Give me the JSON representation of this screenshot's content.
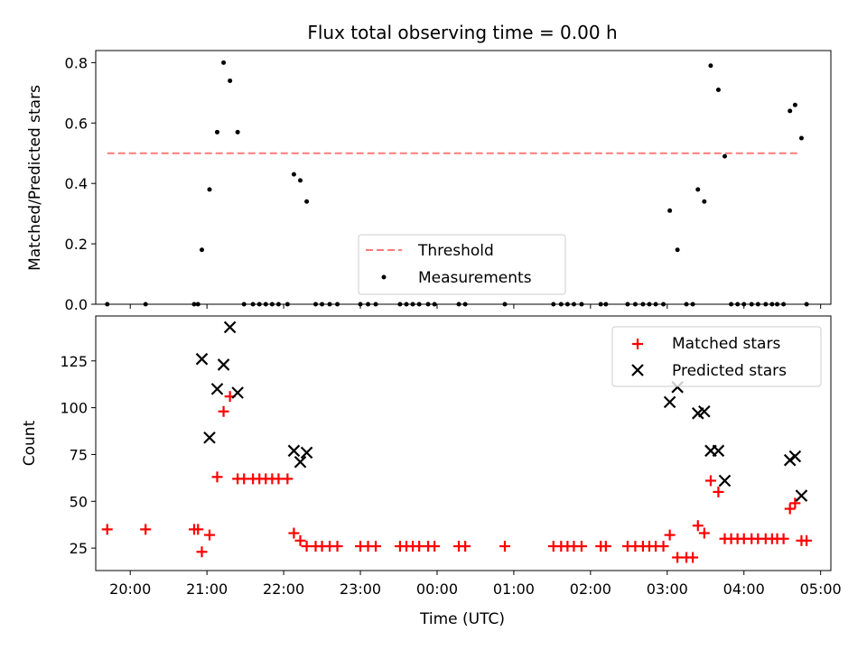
{
  "figure": {
    "title": "Flux total observing time = 0.00 h"
  },
  "chart_data": [
    {
      "type": "scatter",
      "title": "Flux total observing time = 0.00 h",
      "xlabel": "",
      "ylabel": "Matched/Predicted stars",
      "xlim": [
        "19:33",
        "05:08"
      ],
      "ylim": [
        0,
        0.84
      ],
      "yticks": [
        "0.0",
        "0.2",
        "0.4",
        "0.6",
        "0.8"
      ],
      "ytick_values": [
        0,
        0.2,
        0.4,
        0.6,
        0.8
      ],
      "xticks": [
        "20:00",
        "21:00",
        "22:00",
        "23:00",
        "00:00",
        "01:00",
        "02:00",
        "03:00",
        "04:00",
        "05:00"
      ],
      "legend_position": "lower-center",
      "threshold": {
        "name": "Threshold",
        "value": 0.5,
        "x_start": "19:42",
        "x_end": "04:43",
        "color": "#ff7a7a"
      },
      "series": [
        {
          "name": "Measurements",
          "marker": "dot",
          "color": "#000000",
          "points": [
            [
              "19:42",
              0
            ],
            [
              "20:12",
              0
            ],
            [
              "20:50",
              0
            ],
            [
              "20:53",
              0
            ],
            [
              "20:56",
              0.18
            ],
            [
              "21:02",
              0.38
            ],
            [
              "21:08",
              0.57
            ],
            [
              "21:13",
              0.8
            ],
            [
              "21:18",
              0.74
            ],
            [
              "21:24",
              0.57
            ],
            [
              "21:29",
              0
            ],
            [
              "21:36",
              0
            ],
            [
              "21:41",
              0
            ],
            [
              "21:46",
              0
            ],
            [
              "21:51",
              0
            ],
            [
              "21:56",
              0
            ],
            [
              "22:03",
              0
            ],
            [
              "22:08",
              0.43
            ],
            [
              "22:13",
              0.41
            ],
            [
              "22:18",
              0.34
            ],
            [
              "22:25",
              0
            ],
            [
              "22:30",
              0
            ],
            [
              "22:36",
              0
            ],
            [
              "22:42",
              0
            ],
            [
              "23:00",
              0
            ],
            [
              "23:06",
              0
            ],
            [
              "23:12",
              0
            ],
            [
              "23:31",
              0
            ],
            [
              "23:36",
              0
            ],
            [
              "23:41",
              0
            ],
            [
              "23:46",
              0
            ],
            [
              "23:53",
              0
            ],
            [
              "23:58",
              0
            ],
            [
              "00:17",
              0
            ],
            [
              "00:22",
              0
            ],
            [
              "00:53",
              0
            ],
            [
              "01:31",
              0
            ],
            [
              "01:37",
              0
            ],
            [
              "01:42",
              0
            ],
            [
              "01:47",
              0
            ],
            [
              "01:53",
              0
            ],
            [
              "02:08",
              0
            ],
            [
              "02:12",
              0
            ],
            [
              "02:29",
              0
            ],
            [
              "02:35",
              0
            ],
            [
              "02:41",
              0
            ],
            [
              "02:46",
              0
            ],
            [
              "02:51",
              0
            ],
            [
              "02:57",
              0
            ],
            [
              "03:02",
              0.31
            ],
            [
              "03:08",
              0.18
            ],
            [
              "03:15",
              0
            ],
            [
              "03:20",
              0
            ],
            [
              "03:24",
              0.38
            ],
            [
              "03:29",
              0.34
            ],
            [
              "03:34",
              0.79
            ],
            [
              "03:40",
              0.71
            ],
            [
              "03:45",
              0.49
            ],
            [
              "03:50",
              0
            ],
            [
              "03:55",
              0
            ],
            [
              "04:00",
              0
            ],
            [
              "04:06",
              0
            ],
            [
              "04:11",
              0
            ],
            [
              "04:17",
              0
            ],
            [
              "04:22",
              0
            ],
            [
              "04:26",
              0
            ],
            [
              "04:31",
              0
            ],
            [
              "04:36",
              0.64
            ],
            [
              "04:40",
              0.66
            ],
            [
              "04:45",
              0.55
            ],
            [
              "04:49",
              0
            ]
          ]
        }
      ]
    },
    {
      "type": "scatter",
      "title": "",
      "xlabel": "Time (UTC)",
      "ylabel": "Count",
      "xlim": [
        "19:33",
        "05:08"
      ],
      "ylim": [
        13,
        149
      ],
      "yticks": [
        "25",
        "50",
        "75",
        "100",
        "125"
      ],
      "ytick_values": [
        25,
        50,
        75,
        100,
        125
      ],
      "xticks": [
        "20:00",
        "21:00",
        "22:00",
        "23:00",
        "00:00",
        "01:00",
        "02:00",
        "03:00",
        "04:00",
        "05:00"
      ],
      "legend_position": "top-right",
      "series": [
        {
          "name": "Matched stars",
          "marker": "plus",
          "color": "#ff0000",
          "points": [
            [
              "19:42",
              35
            ],
            [
              "20:12",
              35
            ],
            [
              "20:50",
              35
            ],
            [
              "20:53",
              35
            ],
            [
              "20:56",
              23
            ],
            [
              "21:02",
              32
            ],
            [
              "21:08",
              63
            ],
            [
              "21:13",
              98
            ],
            [
              "21:18",
              106
            ],
            [
              "21:24",
              62
            ],
            [
              "21:29",
              62
            ],
            [
              "21:36",
              62
            ],
            [
              "21:41",
              62
            ],
            [
              "21:46",
              62
            ],
            [
              "21:51",
              62
            ],
            [
              "21:56",
              62
            ],
            [
              "22:03",
              62
            ],
            [
              "22:08",
              33
            ],
            [
              "22:13",
              29
            ],
            [
              "22:18",
              26
            ],
            [
              "22:25",
              26
            ],
            [
              "22:30",
              26
            ],
            [
              "22:36",
              26
            ],
            [
              "22:42",
              26
            ],
            [
              "23:00",
              26
            ],
            [
              "23:06",
              26
            ],
            [
              "23:12",
              26
            ],
            [
              "23:31",
              26
            ],
            [
              "23:36",
              26
            ],
            [
              "23:41",
              26
            ],
            [
              "23:46",
              26
            ],
            [
              "23:53",
              26
            ],
            [
              "23:58",
              26
            ],
            [
              "00:17",
              26
            ],
            [
              "00:22",
              26
            ],
            [
              "00:53",
              26
            ],
            [
              "01:31",
              26
            ],
            [
              "01:37",
              26
            ],
            [
              "01:42",
              26
            ],
            [
              "01:47",
              26
            ],
            [
              "01:53",
              26
            ],
            [
              "02:08",
              26
            ],
            [
              "02:12",
              26
            ],
            [
              "02:29",
              26
            ],
            [
              "02:35",
              26
            ],
            [
              "02:41",
              26
            ],
            [
              "02:46",
              26
            ],
            [
              "02:51",
              26
            ],
            [
              "02:57",
              26
            ],
            [
              "03:02",
              32
            ],
            [
              "03:08",
              20
            ],
            [
              "03:15",
              20
            ],
            [
              "03:20",
              20
            ],
            [
              "03:24",
              37
            ],
            [
              "03:29",
              33
            ],
            [
              "03:34",
              61
            ],
            [
              "03:40",
              55
            ],
            [
              "03:45",
              30
            ],
            [
              "03:50",
              30
            ],
            [
              "03:55",
              30
            ],
            [
              "04:00",
              30
            ],
            [
              "04:06",
              30
            ],
            [
              "04:11",
              30
            ],
            [
              "04:17",
              30
            ],
            [
              "04:22",
              30
            ],
            [
              "04:26",
              30
            ],
            [
              "04:31",
              30
            ],
            [
              "04:36",
              46
            ],
            [
              "04:40",
              49
            ],
            [
              "04:45",
              29
            ],
            [
              "04:49",
              29
            ]
          ]
        },
        {
          "name": "Predicted stars",
          "marker": "x",
          "color": "#000000",
          "points": [
            [
              "20:56",
              126
            ],
            [
              "21:02",
              84
            ],
            [
              "21:08",
              110
            ],
            [
              "21:13",
              123
            ],
            [
              "21:18",
              143
            ],
            [
              "21:24",
              108
            ],
            [
              "22:08",
              77
            ],
            [
              "22:13",
              71
            ],
            [
              "22:18",
              76
            ],
            [
              "03:02",
              103
            ],
            [
              "03:08",
              111
            ],
            [
              "03:24",
              97
            ],
            [
              "03:29",
              98
            ],
            [
              "03:34",
              77
            ],
            [
              "03:40",
              77
            ],
            [
              "03:45",
              61
            ],
            [
              "04:36",
              72
            ],
            [
              "04:40",
              74
            ],
            [
              "04:45",
              53
            ]
          ]
        }
      ]
    }
  ]
}
